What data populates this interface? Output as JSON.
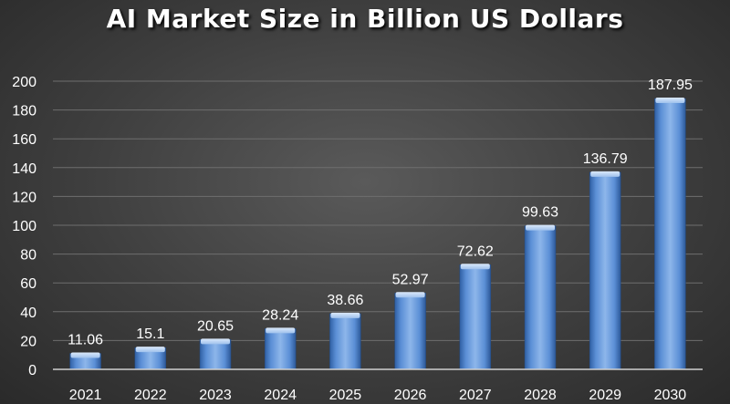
{
  "chart_data": {
    "type": "bar",
    "title": "AI Market Size in Billion US Dollars",
    "xlabel": "",
    "ylabel": "",
    "categories": [
      "2021",
      "2022",
      "2023",
      "2024",
      "2025",
      "2026",
      "2027",
      "2028",
      "2029",
      "2030"
    ],
    "values": [
      11.06,
      15.1,
      20.65,
      28.24,
      38.66,
      52.97,
      72.62,
      99.63,
      136.79,
      187.95
    ],
    "value_labels": [
      "11.06",
      "15.1",
      "20.65",
      "28.24",
      "38.66",
      "52.97",
      "72.62",
      "99.63",
      "136.79",
      "187.95"
    ],
    "ylim": [
      0,
      200
    ],
    "yticks": [
      0,
      20,
      40,
      60,
      80,
      100,
      120,
      140,
      160,
      180,
      200
    ],
    "grid": true,
    "legend": "none",
    "colors": {
      "bar_light": "#a9c8ef",
      "bar": "#5b8fd6",
      "bar_dark": "#2e5b9c",
      "grid": "#6e6e6e",
      "axis": "#d0d0d0",
      "text": "#ffffff"
    }
  }
}
